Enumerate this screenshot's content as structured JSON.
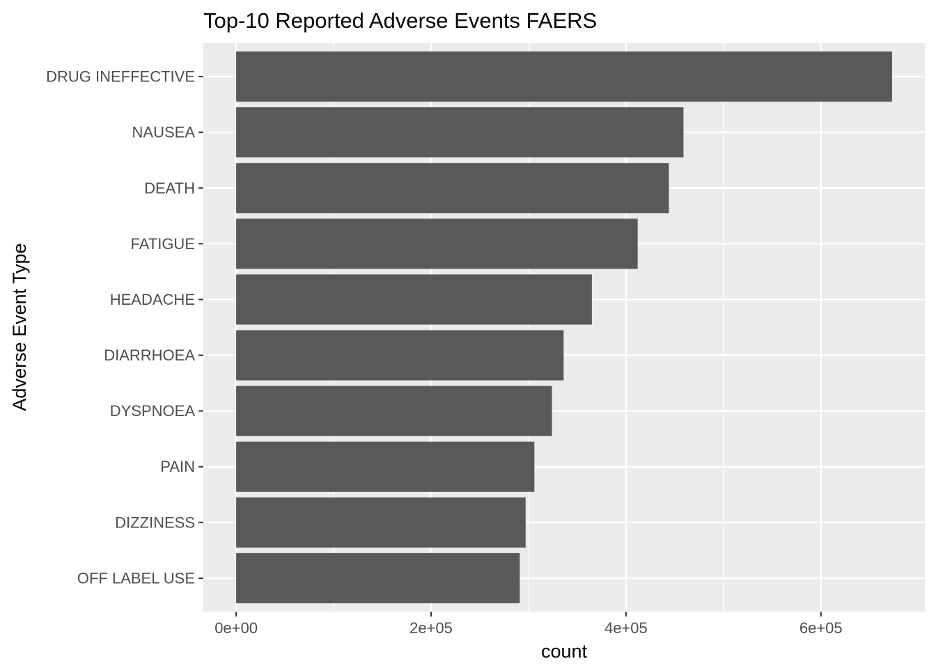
{
  "chart_data": {
    "type": "bar",
    "orientation": "horizontal",
    "title": "Top-10 Reported Adverse Events FAERS",
    "xlabel": "count",
    "ylabel": "Adverse Event Type",
    "categories": [
      "DRUG INEFFECTIVE",
      "NAUSEA",
      "DEATH",
      "FATIGUE",
      "HEADACHE",
      "DIARRHOEA",
      "DYSPNOEA",
      "PAIN",
      "DIZZINESS",
      "OFF LABEL USE"
    ],
    "values": [
      673000,
      459000,
      444000,
      412000,
      365000,
      336000,
      324000,
      306000,
      297000,
      291000
    ],
    "xlim": [
      -33650,
      706650
    ],
    "x_ticks": [
      {
        "value": 0,
        "label": "0e+00"
      },
      {
        "value": 200000,
        "label": "2e+05"
      },
      {
        "value": 400000,
        "label": "4e+05"
      },
      {
        "value": 600000,
        "label": "6e+05"
      }
    ],
    "x_minor_ticks": [
      100000,
      300000,
      500000
    ],
    "grid": true,
    "colors": {
      "bar": "#595959",
      "panel": "#ebebeb",
      "grid": "#ffffff"
    }
  }
}
